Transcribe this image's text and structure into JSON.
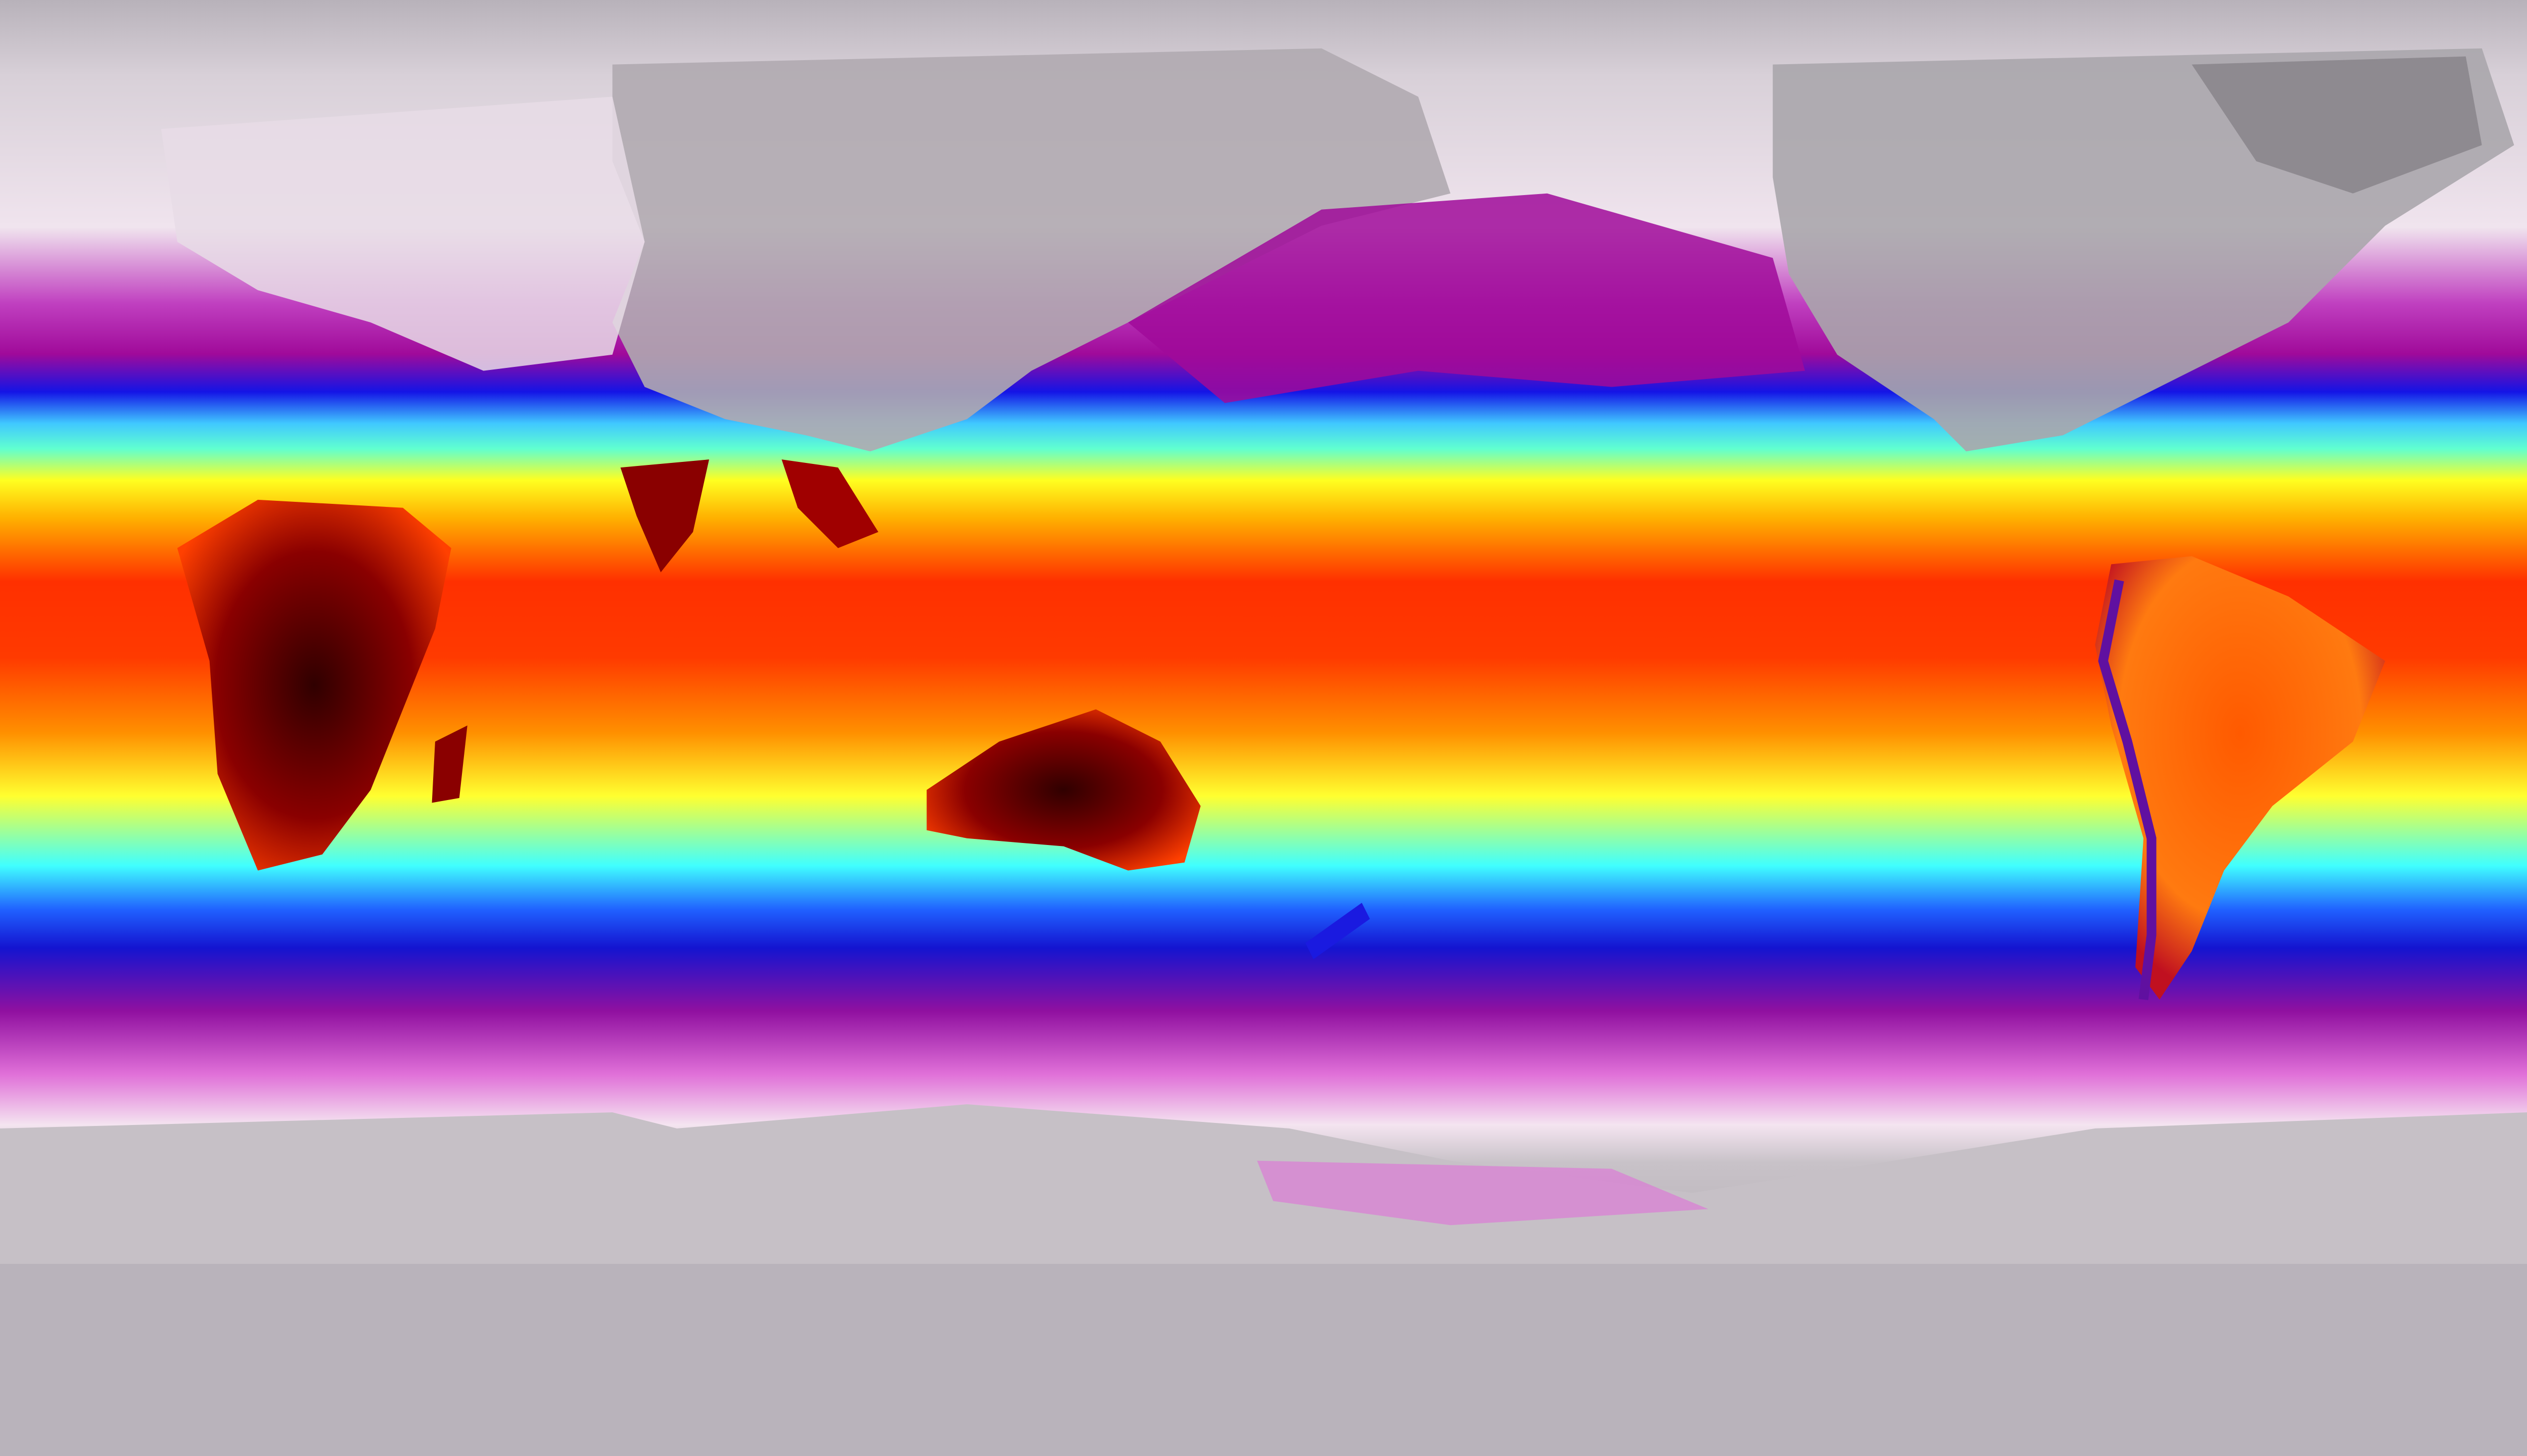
{
  "map": {
    "projection": "equirectangular",
    "color_scale": [
      "#b8b2ba",
      "#f2e6f0",
      "#e070d8",
      "#a00a9a",
      "#1414e6",
      "#3aa0ff",
      "#40ffff",
      "#ffff20",
      "#ffb000",
      "#ff4000",
      "#e00000",
      "#400000"
    ],
    "land_colors": {
      "cold_land": "#a8a4a8",
      "hot_land": "#5a0000",
      "warm_land": "#ff5a00"
    }
  }
}
